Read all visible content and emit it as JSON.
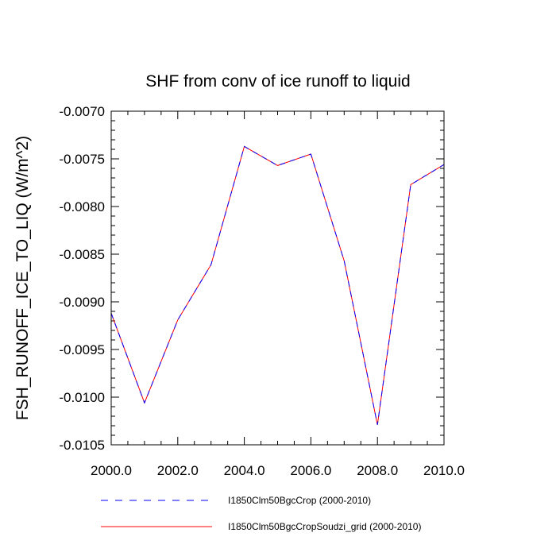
{
  "chart_data": {
    "type": "line",
    "title": "SHF from conv of ice runoff to liquid",
    "xlabel": "",
    "ylabel": "FSH_RUNOFF_ICE_TO_LIQ  (W/m^2)",
    "xlim": [
      2000,
      2010
    ],
    "ylim": [
      -0.0105,
      -0.007
    ],
    "xticks": [
      2000,
      2002,
      2004,
      2006,
      2008,
      2010
    ],
    "xtick_labels": [
      "2000.0",
      "2002.0",
      "2004.0",
      "2006.0",
      "2008.0",
      "2010.0"
    ],
    "yticks": [
      -0.007,
      -0.0075,
      -0.008,
      -0.0085,
      -0.009,
      -0.0095,
      -0.01,
      -0.0105
    ],
    "ytick_labels": [
      "-0.0070",
      "-0.0075",
      "-0.0080",
      "-0.0085",
      "-0.0090",
      "-0.0095",
      "-0.0100",
      "-0.0105"
    ],
    "grid": false,
    "legend_position": "bottom",
    "x": [
      2000,
      2001,
      2002,
      2003,
      2004,
      2005,
      2006,
      2007,
      2008,
      2009,
      2010
    ],
    "series": [
      {
        "name": "I1850Clm50BgcCrop (2000-2010)",
        "color": "#0000ff",
        "dash": "dashed",
        "values": [
          -0.00912,
          -0.01006,
          -0.00919,
          -0.00861,
          -0.00737,
          -0.00757,
          -0.00745,
          -0.00857,
          -0.01029,
          -0.00777,
          -0.00756
        ]
      },
      {
        "name": "I1850Clm50BgcCropSoudzi_grid (2000-2010)",
        "color": "#ff0000",
        "dash": "solid",
        "values": [
          -0.00912,
          -0.01006,
          -0.00919,
          -0.00861,
          -0.00737,
          -0.00757,
          -0.00745,
          -0.00857,
          -0.01029,
          -0.00777,
          -0.00756
        ]
      }
    ]
  }
}
